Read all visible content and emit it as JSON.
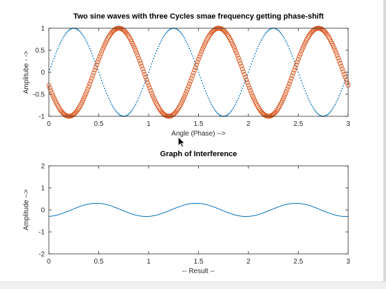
{
  "colors": {
    "series_a": "#0072bd",
    "series_b": "#d95319",
    "axis": "#262626",
    "title": "#000000",
    "background": "#ffffff"
  },
  "cursor": "mouse-pointer-icon",
  "chart_data": [
    {
      "type": "scatter",
      "title": "Two sine waves with three Cycles smae frequency getting phase-shift",
      "xlabel": "Angle (Phase) -->",
      "ylabel": "Amplitube - ->",
      "xlim": [
        0,
        3
      ],
      "ylim": [
        -1,
        1
      ],
      "xticks": [
        0,
        0.5,
        1,
        1.5,
        2,
        2.5,
        3
      ],
      "yticks": [
        -1,
        -0.5,
        0,
        0.5,
        1
      ],
      "xtick_labels": [
        "0",
        "0.5",
        "1",
        "1.5",
        "2",
        "2.5",
        "3"
      ],
      "ytick_labels": [
        "-1",
        "-0.5",
        "0",
        "0.5",
        "1"
      ],
      "grid": false,
      "legend": "none",
      "series": [
        {
          "marker": "dot",
          "function": "sin(2*pi*x)",
          "x_step": 0.01,
          "points_at_quarter_cycles": [
            [
              0,
              0
            ],
            [
              0.25,
              1
            ],
            [
              0.5,
              0
            ],
            [
              0.75,
              -1
            ],
            [
              1,
              0
            ],
            [
              1.25,
              1
            ],
            [
              1.5,
              0
            ],
            [
              1.75,
              -1
            ],
            [
              2,
              0
            ],
            [
              2.25,
              1
            ],
            [
              2.5,
              0
            ],
            [
              2.75,
              -1
            ],
            [
              3,
              0
            ]
          ]
        },
        {
          "marker": "circle",
          "function": "sin(2*pi*x + pi + 0.3)",
          "x_step": 0.01,
          "points_at_extrema": [
            [
              0,
              -0.3
            ],
            [
              0.202,
              -1
            ],
            [
              0.452,
              0
            ],
            [
              0.702,
              1
            ],
            [
              0.952,
              0
            ],
            [
              1.202,
              -1
            ],
            [
              1.452,
              0
            ],
            [
              1.702,
              1
            ],
            [
              1.952,
              0
            ],
            [
              2.202,
              -1
            ],
            [
              2.452,
              0
            ],
            [
              2.702,
              1
            ],
            [
              2.952,
              0
            ],
            [
              3,
              -0.3
            ]
          ]
        }
      ]
    },
    {
      "type": "line",
      "title": "Graph of Interference",
      "xlabel": "-- Result --",
      "ylabel": "Amplitude -->",
      "xlim": [
        0,
        3
      ],
      "ylim": [
        -2,
        2
      ],
      "xticks": [
        0,
        0.5,
        1,
        1.5,
        2,
        2.5,
        3
      ],
      "yticks": [
        -2,
        -1,
        0,
        1,
        2
      ],
      "xtick_labels": [
        "0",
        "0.5",
        "1",
        "1.5",
        "2",
        "2.5",
        "3"
      ],
      "ytick_labels": [
        "-2",
        "-1",
        "0",
        "1",
        "2"
      ],
      "grid": false,
      "legend": "none",
      "series": [
        {
          "function": "sin(2*pi*x) + sin(2*pi*x + pi + 0.3)",
          "x_step": 0.01,
          "points": [
            [
              0,
              -0.3
            ],
            [
              0.48,
              0.3
            ],
            [
              0.98,
              -0.3
            ],
            [
              1.48,
              0.3
            ],
            [
              1.98,
              -0.3
            ],
            [
              2.48,
              0.3
            ],
            [
              3,
              -0.3
            ]
          ]
        }
      ]
    }
  ]
}
